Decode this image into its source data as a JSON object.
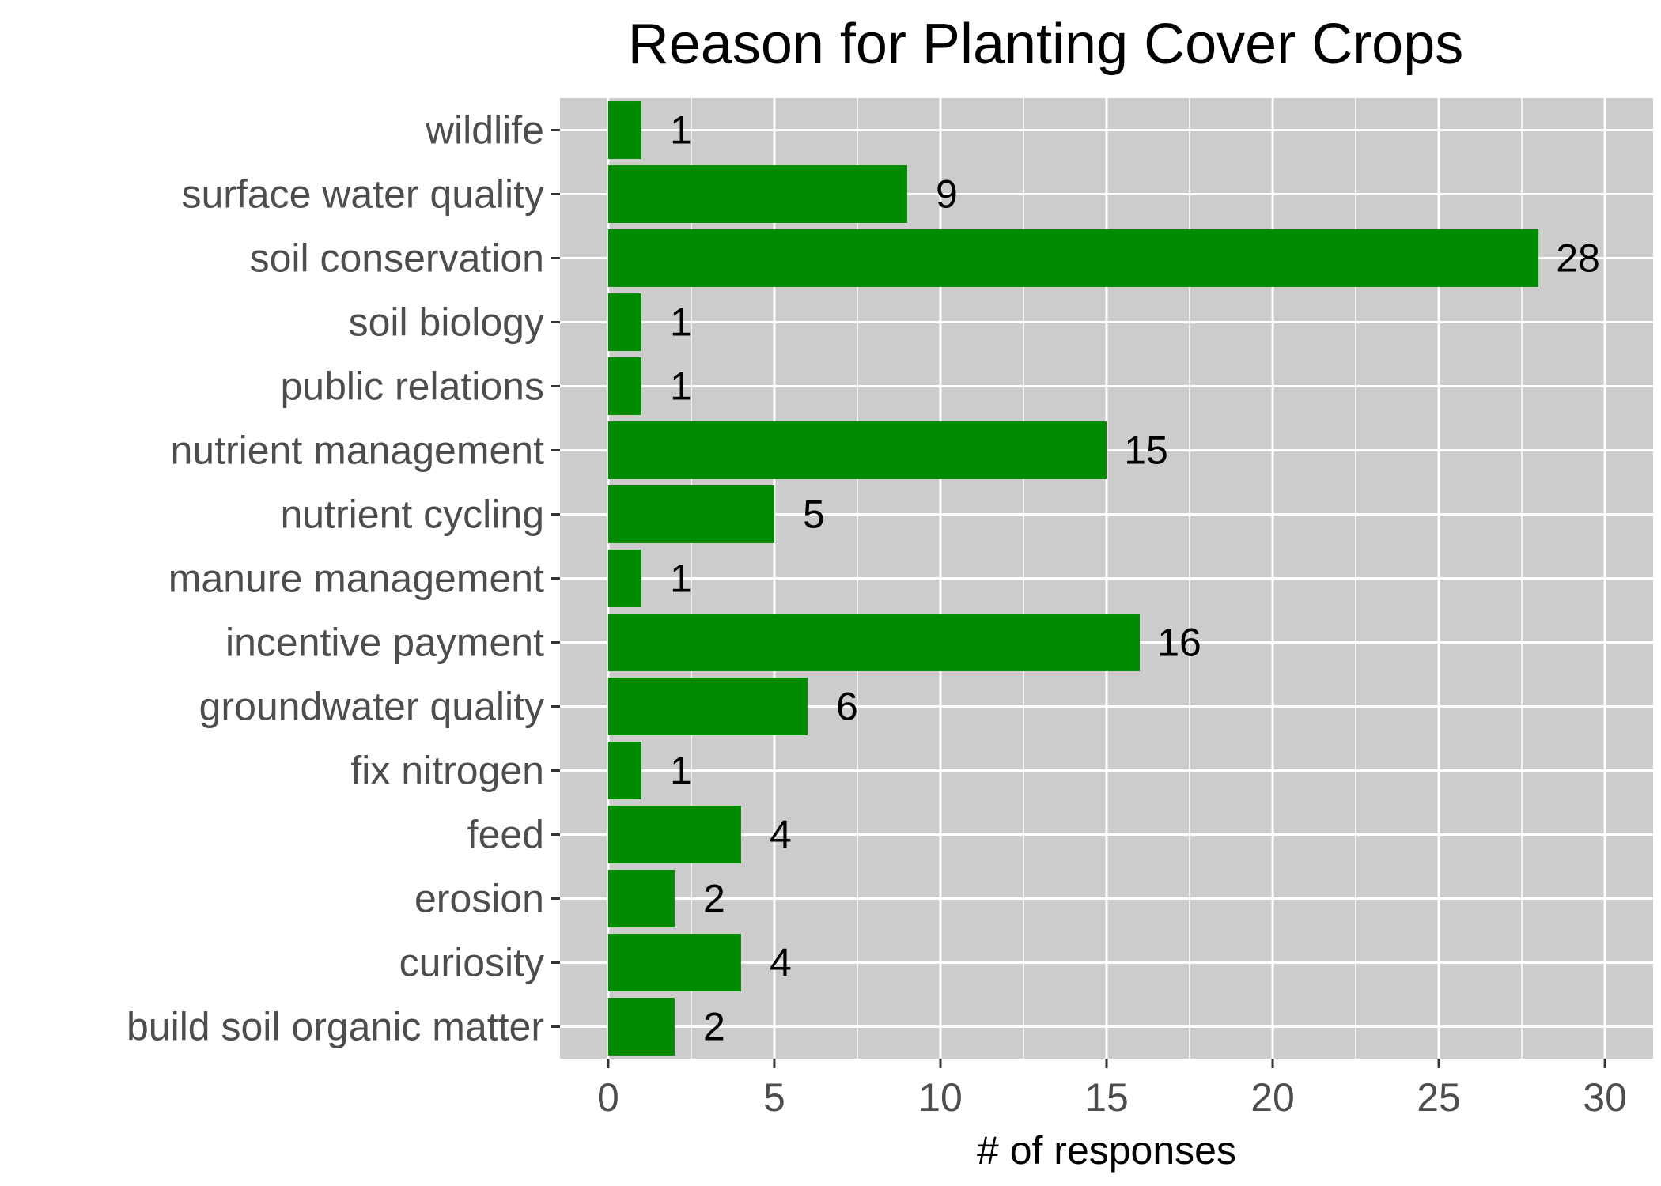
{
  "chart_data": {
    "type": "bar",
    "orientation": "horizontal",
    "title": "Reason for Planting Cover Crops",
    "xlabel": "# of responses",
    "ylabel": "",
    "categories": [
      "build soil organic matter",
      "curiosity",
      "erosion",
      "feed",
      "fix nitrogen",
      "groundwater quality",
      "incentive payment",
      "manure management",
      "nutrient cycling",
      "nutrient management",
      "public relations",
      "soil biology",
      "soil conservation",
      "surface water quality",
      "wildlife"
    ],
    "values": [
      2,
      4,
      2,
      4,
      1,
      6,
      16,
      1,
      5,
      15,
      1,
      1,
      28,
      9,
      1
    ],
    "xlim": [
      -1.45,
      31.45
    ],
    "xticks": [
      0,
      5,
      10,
      15,
      20,
      25,
      30
    ],
    "grid": true,
    "colors": {
      "bar": "#008b00",
      "panel": "#cccccc",
      "grid": "#ffffff",
      "axis_text": "#4d4d4d"
    }
  }
}
